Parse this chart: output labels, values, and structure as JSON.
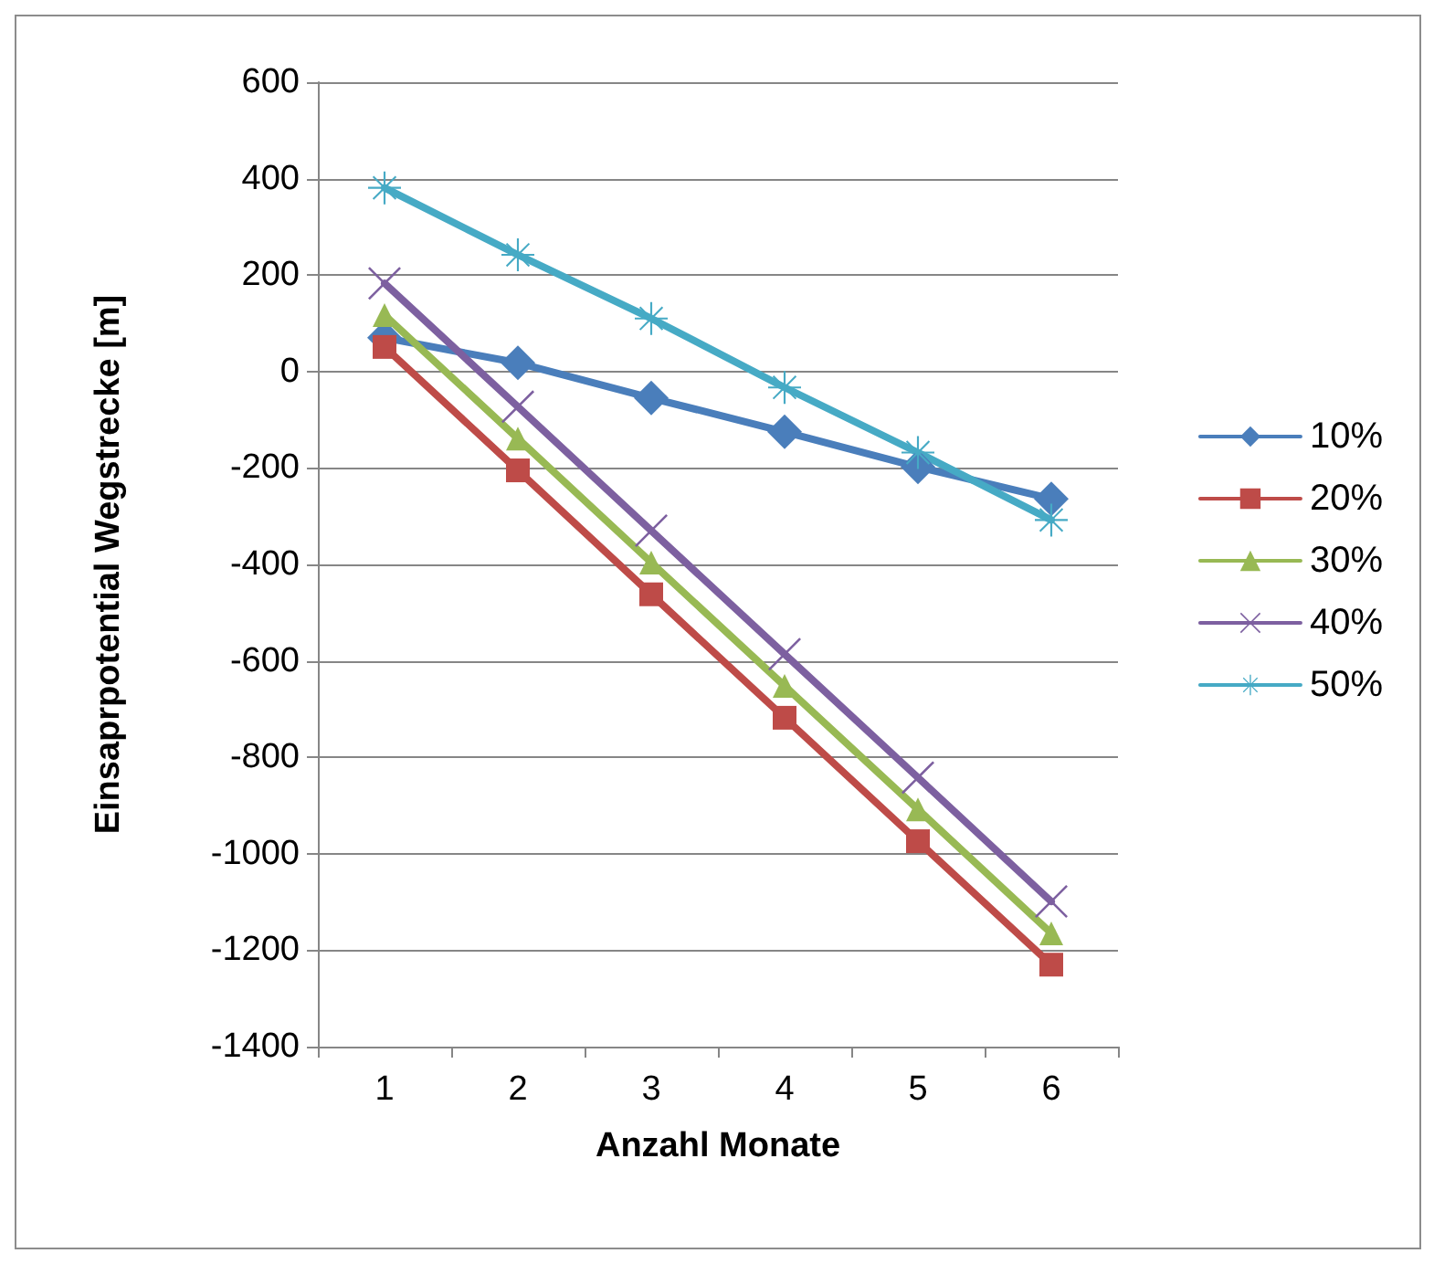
{
  "chart_data": {
    "type": "line",
    "xlabel": "Anzahl Monate",
    "ylabel": "Einsaprpotential Wegstrecke [m]",
    "categories": [
      "1",
      "2",
      "3",
      "4",
      "5",
      "6"
    ],
    "series": [
      {
        "name": "10%",
        "color": "#4a7ebb",
        "marker": "diamond",
        "values": [
          70,
          18,
          -55,
          -125,
          -198,
          -264
        ]
      },
      {
        "name": "20%",
        "color": "#be4b48",
        "marker": "square",
        "values": [
          51,
          -205,
          -462,
          -718,
          -974,
          -1230
        ]
      },
      {
        "name": "30%",
        "color": "#98b954",
        "marker": "triangle",
        "values": [
          117,
          -139,
          -396,
          -652,
          -908,
          -1165
        ]
      },
      {
        "name": "40%",
        "color": "#7d60a0",
        "marker": "cross",
        "values": [
          183,
          -73,
          -330,
          -586,
          -842,
          -1099
        ]
      },
      {
        "name": "50%",
        "color": "#46aac5",
        "marker": "star",
        "values": [
          381,
          242,
          110,
          -33,
          -168,
          -308
        ]
      }
    ],
    "ylim": [
      -1400,
      600
    ],
    "yticks": [
      -1400,
      -1200,
      -1000,
      -800,
      -600,
      -400,
      -200,
      0,
      200,
      400,
      600
    ],
    "grid": "y",
    "legend": "right",
    "line_style": "solid"
  }
}
